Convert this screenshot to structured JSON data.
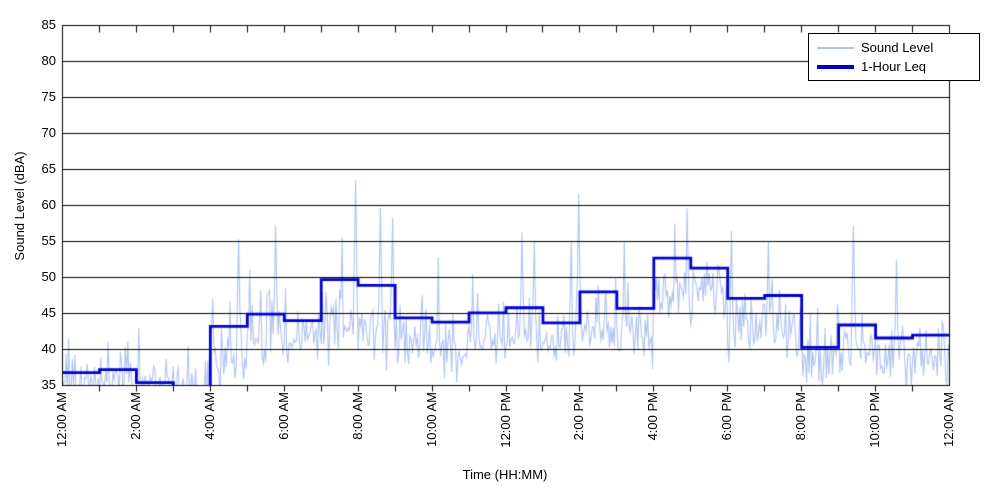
{
  "figure": {
    "background": "#ffffff"
  },
  "axes": {
    "y_label": "Sound Level (dBA)",
    "x_label": "Time (HH:MM)",
    "y_min": 35,
    "y_max": 85,
    "y_tick_step": 5,
    "y_ticks": [
      85,
      80,
      75,
      70,
      65,
      60,
      55,
      50,
      45,
      40,
      35
    ],
    "x_hours_span": 24,
    "x_minor_tick_every_hours": 1,
    "x_label_every_hours": 2,
    "x_tick_labels": [
      "12:00 AM",
      "2:00 AM",
      "4:00 AM",
      "6:00 AM",
      "8:00 AM",
      "10:00 AM",
      "12:00 PM",
      "2:00 PM",
      "4:00 PM",
      "6:00 PM",
      "8:00 PM",
      "10:00 PM",
      "12:00 AM"
    ],
    "grid": "horizontal-only",
    "axis_color": "#000000"
  },
  "legend": {
    "position": "top-right",
    "items": [
      {
        "label": "Sound Level",
        "color": "#b0c4f0",
        "line_weight": "thin"
      },
      {
        "label": "1-Hour Leq",
        "color": "#0000cd",
        "line_weight": "thick"
      }
    ]
  },
  "chart_data": {
    "type": "line",
    "title": "",
    "xlabel": "Time (HH:MM)",
    "ylabel": "Sound Level (dBA)",
    "ylim": [
      35,
      85
    ],
    "xlim_hours": [
      0,
      24
    ],
    "x_tick_labels": [
      "12:00 AM",
      "2:00 AM",
      "4:00 AM",
      "6:00 AM",
      "8:00 AM",
      "10:00 AM",
      "12:00 PM",
      "2:00 PM",
      "4:00 PM",
      "6:00 PM",
      "8:00 PM",
      "10:00 PM",
      "12:00 AM"
    ],
    "legend_position": "top-right",
    "series": [
      {
        "name": "1-Hour Leq",
        "style": "step",
        "color": "#0000cd",
        "x_unit": "hour of day (each value spans one hour)",
        "values": [
          36.8,
          37.2,
          35.4,
          34.5,
          43.2,
          44.9,
          44.0,
          49.7,
          48.9,
          44.4,
          43.8,
          45.1,
          45.8,
          43.7,
          48.0,
          45.7,
          52.7,
          51.3,
          47.1,
          47.5,
          40.3,
          43.4,
          41.6,
          42.0
        ]
      },
      {
        "name": "Sound Level",
        "style": "noisy-line",
        "color": "#b0c4f0",
        "sample_interval_minutes": 2,
        "seed": 1337,
        "hourly_envelope": [
          {
            "base": 35.2,
            "amp": 3.0
          },
          {
            "base": 35.2,
            "amp": 2.8
          },
          {
            "base": 34.8,
            "amp": 2.8
          },
          {
            "base": 33.8,
            "amp": 2.2
          },
          {
            "base": 39.5,
            "amp": 4.5
          },
          {
            "base": 41.5,
            "amp": 4.0
          },
          {
            "base": 41.5,
            "amp": 3.8
          },
          {
            "base": 43.5,
            "amp": 5.0
          },
          {
            "base": 43.0,
            "amp": 4.8
          },
          {
            "base": 40.5,
            "amp": 4.0
          },
          {
            "base": 40.0,
            "amp": 4.0
          },
          {
            "base": 41.5,
            "amp": 3.8
          },
          {
            "base": 42.0,
            "amp": 4.2
          },
          {
            "base": 40.5,
            "amp": 4.2
          },
          {
            "base": 43.5,
            "amp": 4.2
          },
          {
            "base": 42.0,
            "amp": 4.2
          },
          {
            "base": 47.5,
            "amp": 4.8
          },
          {
            "base": 48.5,
            "amp": 4.2
          },
          {
            "base": 42.5,
            "amp": 4.5
          },
          {
            "base": 42.0,
            "amp": 4.2
          },
          {
            "base": 38.0,
            "amp": 3.8
          },
          {
            "base": 39.0,
            "amp": 4.2
          },
          {
            "base": 38.0,
            "amp": 3.8
          },
          {
            "base": 38.5,
            "amp": 3.8
          }
        ],
        "notable_spikes": [
          {
            "t": 0.17,
            "v": 41.5
          },
          {
            "t": 1.22,
            "v": 41.0
          },
          {
            "t": 2.07,
            "v": 43.0
          },
          {
            "t": 4.75,
            "v": 55.3
          },
          {
            "t": 5.05,
            "v": 51.0
          },
          {
            "t": 5.76,
            "v": 57.2
          },
          {
            "t": 7.55,
            "v": 55.5
          },
          {
            "t": 7.93,
            "v": 63.5
          },
          {
            "t": 8.6,
            "v": 59.7
          },
          {
            "t": 8.92,
            "v": 58.3
          },
          {
            "t": 10.18,
            "v": 52.8
          },
          {
            "t": 11.1,
            "v": 50.5
          },
          {
            "t": 12.42,
            "v": 56.3
          },
          {
            "t": 12.75,
            "v": 55.0
          },
          {
            "t": 13.76,
            "v": 55.1
          },
          {
            "t": 13.98,
            "v": 61.6
          },
          {
            "t": 15.2,
            "v": 55.0
          },
          {
            "t": 16.55,
            "v": 57.5
          },
          {
            "t": 16.9,
            "v": 59.6
          },
          {
            "t": 18.1,
            "v": 56.5
          },
          {
            "t": 19.1,
            "v": 55.0
          },
          {
            "t": 21.4,
            "v": 57.2
          },
          {
            "t": 22.55,
            "v": 52.5
          }
        ]
      }
    ]
  }
}
